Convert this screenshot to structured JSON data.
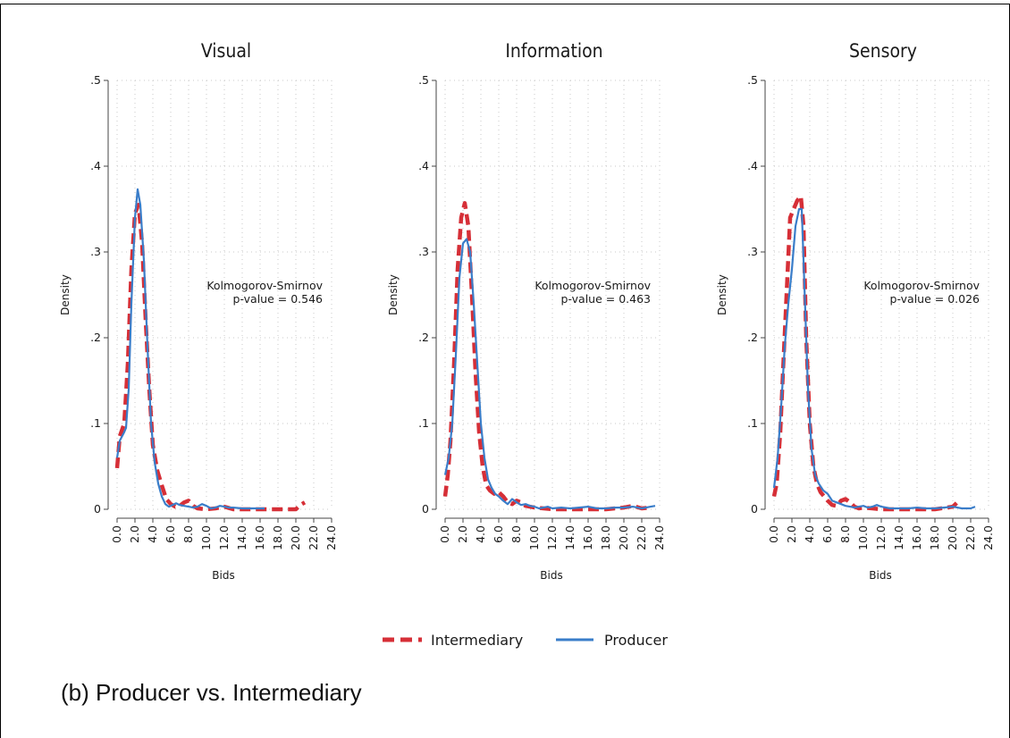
{
  "figure": {
    "caption": "(b)  Producer vs. Intermediary",
    "legend": [
      {
        "label": "Intermediary",
        "color": "#d62f37",
        "style": "dashed"
      },
      {
        "label": "Producer",
        "color": "#3a7dc9",
        "style": "solid"
      }
    ]
  },
  "chart_data": [
    {
      "type": "line",
      "title": "Visual",
      "xlabel": "Bids",
      "ylabel": "Density",
      "xlim": [
        0,
        24
      ],
      "ylim": [
        0,
        0.5
      ],
      "xticks": [
        "0.0",
        "2.0",
        "4.0",
        "6.0",
        "8.0",
        "10.0",
        "12.0",
        "14.0",
        "16.0",
        "18.0",
        "20.0",
        "22.0",
        "24.0"
      ],
      "yticks": [
        "0",
        ".1",
        ".2",
        ".3",
        ".4",
        ".5"
      ],
      "grid": true,
      "annotation": [
        "Kolmogorov-Smirnov",
        "p-value = 0.546"
      ],
      "series": [
        {
          "name": "Intermediary",
          "x": [
            0,
            0.3,
            0.8,
            1.2,
            1.6,
            2.0,
            2.4,
            2.8,
            3.2,
            3.6,
            4.0,
            4.5,
            5.0,
            5.5,
            6.0,
            6.5,
            7.0,
            7.5,
            8.0,
            8.5,
            9.0,
            10,
            11,
            12,
            13,
            14,
            16,
            18,
            20,
            20.5,
            21
          ],
          "y": [
            0.048,
            0.085,
            0.1,
            0.17,
            0.28,
            0.345,
            0.355,
            0.31,
            0.22,
            0.14,
            0.075,
            0.045,
            0.028,
            0.012,
            0.006,
            0.003,
            0.004,
            0.008,
            0.01,
            0.004,
            0.001,
            0.0,
            0.001,
            0.003,
            0.0,
            0.0,
            0.0,
            0.0,
            0.0,
            0.005,
            0.008
          ]
        },
        {
          "name": "Producer",
          "x": [
            0,
            0.3,
            0.8,
            1.0,
            1.3,
            1.6,
            2.0,
            2.3,
            2.6,
            3.0,
            3.4,
            3.8,
            4.2,
            4.6,
            5.0,
            5.4,
            5.8,
            6.2,
            6.6,
            7.0,
            7.5,
            8.0,
            8.5,
            9.0,
            9.5,
            10,
            10.5,
            11,
            11.5,
            12,
            12.5,
            13,
            14,
            15,
            16,
            16.5
          ],
          "y": [
            0.06,
            0.08,
            0.09,
            0.095,
            0.14,
            0.24,
            0.34,
            0.373,
            0.355,
            0.29,
            0.19,
            0.1,
            0.055,
            0.03,
            0.015,
            0.006,
            0.003,
            0.005,
            0.007,
            0.005,
            0.004,
            0.003,
            0.002,
            0.003,
            0.006,
            0.004,
            0.001,
            0.002,
            0.004,
            0.003,
            0.002,
            0.002,
            0.001,
            0.001,
            0.001,
            0.001
          ]
        }
      ]
    },
    {
      "type": "line",
      "title": "Information",
      "xlabel": "Bids",
      "ylabel": "Density",
      "xlim": [
        0,
        24
      ],
      "ylim": [
        0,
        0.5
      ],
      "xticks": [
        "0.0",
        "2.0",
        "4.0",
        "6.0",
        "8.0",
        "10.0",
        "12.0",
        "14.0",
        "16.0",
        "18.0",
        "20.0",
        "22.0",
        "24.0"
      ],
      "yticks": [
        "0",
        ".1",
        ".2",
        ".3",
        ".4",
        ".5"
      ],
      "grid": true,
      "annotation": [
        "Kolmogorov-Smirnov",
        "p-value = 0.463"
      ],
      "series": [
        {
          "name": "Intermediary",
          "x": [
            0,
            0.3,
            0.6,
            1.0,
            1.4,
            1.8,
            2.2,
            2.6,
            3.0,
            3.4,
            3.8,
            4.2,
            4.6,
            5.0,
            5.5,
            6.0,
            6.5,
            7.0,
            7.5,
            8.0,
            8.5,
            9.0,
            10,
            11,
            12,
            14,
            16,
            18,
            20,
            21,
            22,
            23
          ],
          "y": [
            0.015,
            0.04,
            0.08,
            0.17,
            0.28,
            0.34,
            0.357,
            0.33,
            0.25,
            0.16,
            0.09,
            0.05,
            0.028,
            0.022,
            0.018,
            0.02,
            0.015,
            0.008,
            0.006,
            0.01,
            0.008,
            0.004,
            0.002,
            0.001,
            0.0,
            0.0,
            0.0,
            0.0,
            0.002,
            0.004,
            0.001,
            0.002
          ]
        },
        {
          "name": "Producer",
          "x": [
            0,
            0.4,
            0.8,
            1.2,
            1.6,
            2.0,
            2.4,
            2.8,
            3.2,
            3.6,
            4.0,
            4.4,
            4.8,
            5.2,
            5.6,
            6.0,
            6.5,
            7.0,
            7.5,
            8.0,
            8.5,
            9.0,
            9.5,
            10,
            10.5,
            11,
            11.5,
            12,
            13,
            14,
            15,
            16,
            17,
            18,
            19,
            20,
            21,
            22,
            23,
            23.5
          ],
          "y": [
            0.04,
            0.06,
            0.1,
            0.18,
            0.27,
            0.31,
            0.315,
            0.3,
            0.24,
            0.17,
            0.1,
            0.06,
            0.035,
            0.025,
            0.018,
            0.015,
            0.01,
            0.006,
            0.012,
            0.008,
            0.005,
            0.006,
            0.004,
            0.003,
            0.001,
            0.002,
            0.003,
            0.001,
            0.002,
            0.001,
            0.002,
            0.003,
            0.001,
            0.001,
            0.002,
            0.002,
            0.003,
            0.001,
            0.003,
            0.004
          ]
        }
      ]
    },
    {
      "type": "line",
      "title": "Sensory",
      "xlabel": "Bids",
      "ylabel": "Density",
      "xlim": [
        0,
        24
      ],
      "ylim": [
        0,
        0.5
      ],
      "xticks": [
        "0.0",
        "2.0",
        "4.0",
        "6.0",
        "8.0",
        "10.0",
        "12.0",
        "14.0",
        "16.0",
        "18.0",
        "20.0",
        "22.0",
        "24.0"
      ],
      "yticks": [
        "0",
        ".1",
        ".2",
        ".3",
        ".4",
        ".5"
      ],
      "grid": true,
      "annotation": [
        "Kolmogorov-Smirnov",
        "p-value = 0.026"
      ],
      "series": [
        {
          "name": "Intermediary",
          "x": [
            0,
            0.3,
            0.7,
            1.0,
            1.4,
            1.8,
            2.2,
            2.6,
            3.0,
            3.3,
            3.6,
            4.0,
            4.4,
            4.8,
            5.2,
            5.6,
            6.0,
            6.5,
            7.0,
            7.5,
            8.0,
            8.5,
            9.0,
            9.5,
            10,
            11,
            12,
            14,
            16,
            18,
            20,
            20.5
          ],
          "y": [
            0.015,
            0.03,
            0.09,
            0.16,
            0.25,
            0.34,
            0.35,
            0.36,
            0.365,
            0.33,
            0.2,
            0.1,
            0.05,
            0.03,
            0.02,
            0.015,
            0.01,
            0.005,
            0.004,
            0.01,
            0.012,
            0.008,
            0.003,
            0.001,
            0.002,
            0.001,
            0.0,
            0.0,
            0.0,
            0.0,
            0.003,
            0.008
          ]
        },
        {
          "name": "Producer",
          "x": [
            0,
            0.4,
            0.8,
            1.2,
            1.6,
            2.0,
            2.4,
            2.8,
            3.1,
            3.4,
            3.8,
            4.2,
            4.6,
            5.0,
            5.5,
            6.0,
            6.5,
            7.0,
            7.5,
            8.0,
            8.5,
            9.0,
            9.5,
            10,
            10.5,
            11,
            11.5,
            12,
            13,
            14,
            15,
            16,
            17,
            18,
            19,
            20,
            21,
            22,
            22.5
          ],
          "y": [
            0.025,
            0.06,
            0.12,
            0.19,
            0.24,
            0.28,
            0.33,
            0.35,
            0.35,
            0.26,
            0.14,
            0.07,
            0.04,
            0.03,
            0.022,
            0.018,
            0.01,
            0.008,
            0.006,
            0.004,
            0.003,
            0.002,
            0.003,
            0.004,
            0.002,
            0.003,
            0.005,
            0.003,
            0.001,
            0.001,
            0.001,
            0.002,
            0.001,
            0.001,
            0.002,
            0.003,
            0.001,
            0.001,
            0.003
          ]
        }
      ]
    }
  ]
}
